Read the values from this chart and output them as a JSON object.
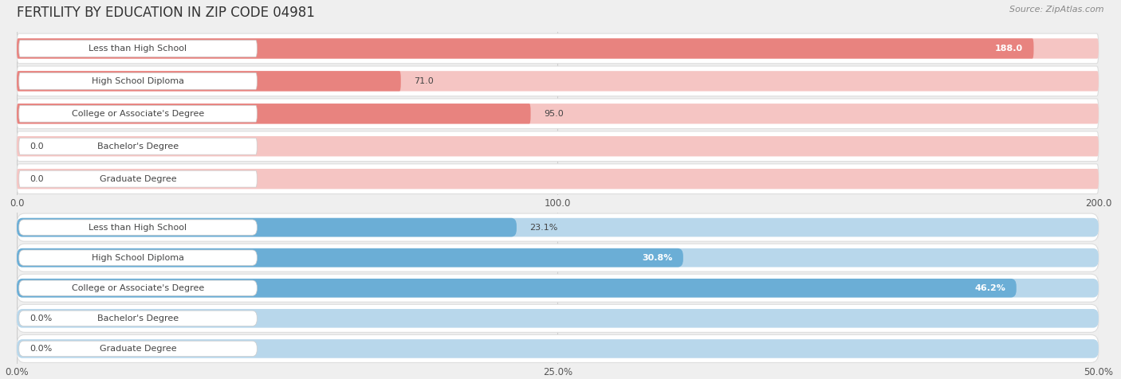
{
  "title": "FERTILITY BY EDUCATION IN ZIP CODE 04981",
  "source": "Source: ZipAtlas.com",
  "top_section": {
    "categories": [
      "Less than High School",
      "High School Diploma",
      "College or Associate's Degree",
      "Bachelor's Degree",
      "Graduate Degree"
    ],
    "values": [
      188.0,
      71.0,
      95.0,
      0.0,
      0.0
    ],
    "bar_color": "#e8837f",
    "bar_bg_color": "#f5c5c3",
    "value_labels": [
      "188.0",
      "71.0",
      "95.0",
      "0.0",
      "0.0"
    ],
    "value_inside": [
      true,
      false,
      false,
      false,
      false
    ],
    "xlim": [
      0,
      200
    ],
    "xticks": [
      0.0,
      100.0,
      200.0
    ],
    "xtick_labels": [
      "0.0",
      "100.0",
      "200.0"
    ]
  },
  "bottom_section": {
    "categories": [
      "Less than High School",
      "High School Diploma",
      "College or Associate's Degree",
      "Bachelor's Degree",
      "Graduate Degree"
    ],
    "values": [
      23.1,
      30.8,
      46.2,
      0.0,
      0.0
    ],
    "bar_color": "#6baed6",
    "bar_bg_color": "#b8d7eb",
    "value_labels": [
      "23.1%",
      "30.8%",
      "46.2%",
      "0.0%",
      "0.0%"
    ],
    "value_inside": [
      false,
      true,
      true,
      false,
      false
    ],
    "xlim": [
      0,
      50
    ],
    "xticks": [
      0.0,
      25.0,
      50.0
    ],
    "xtick_labels": [
      "0.0%",
      "25.0%",
      "50.0%"
    ]
  },
  "background_color": "#efefef",
  "bar_row_color": "#ffffff",
  "bar_height": 0.62,
  "label_fontsize": 8.0,
  "value_fontsize": 8.0,
  "title_fontsize": 12,
  "source_fontsize": 8.0,
  "tick_fontsize": 8.5
}
